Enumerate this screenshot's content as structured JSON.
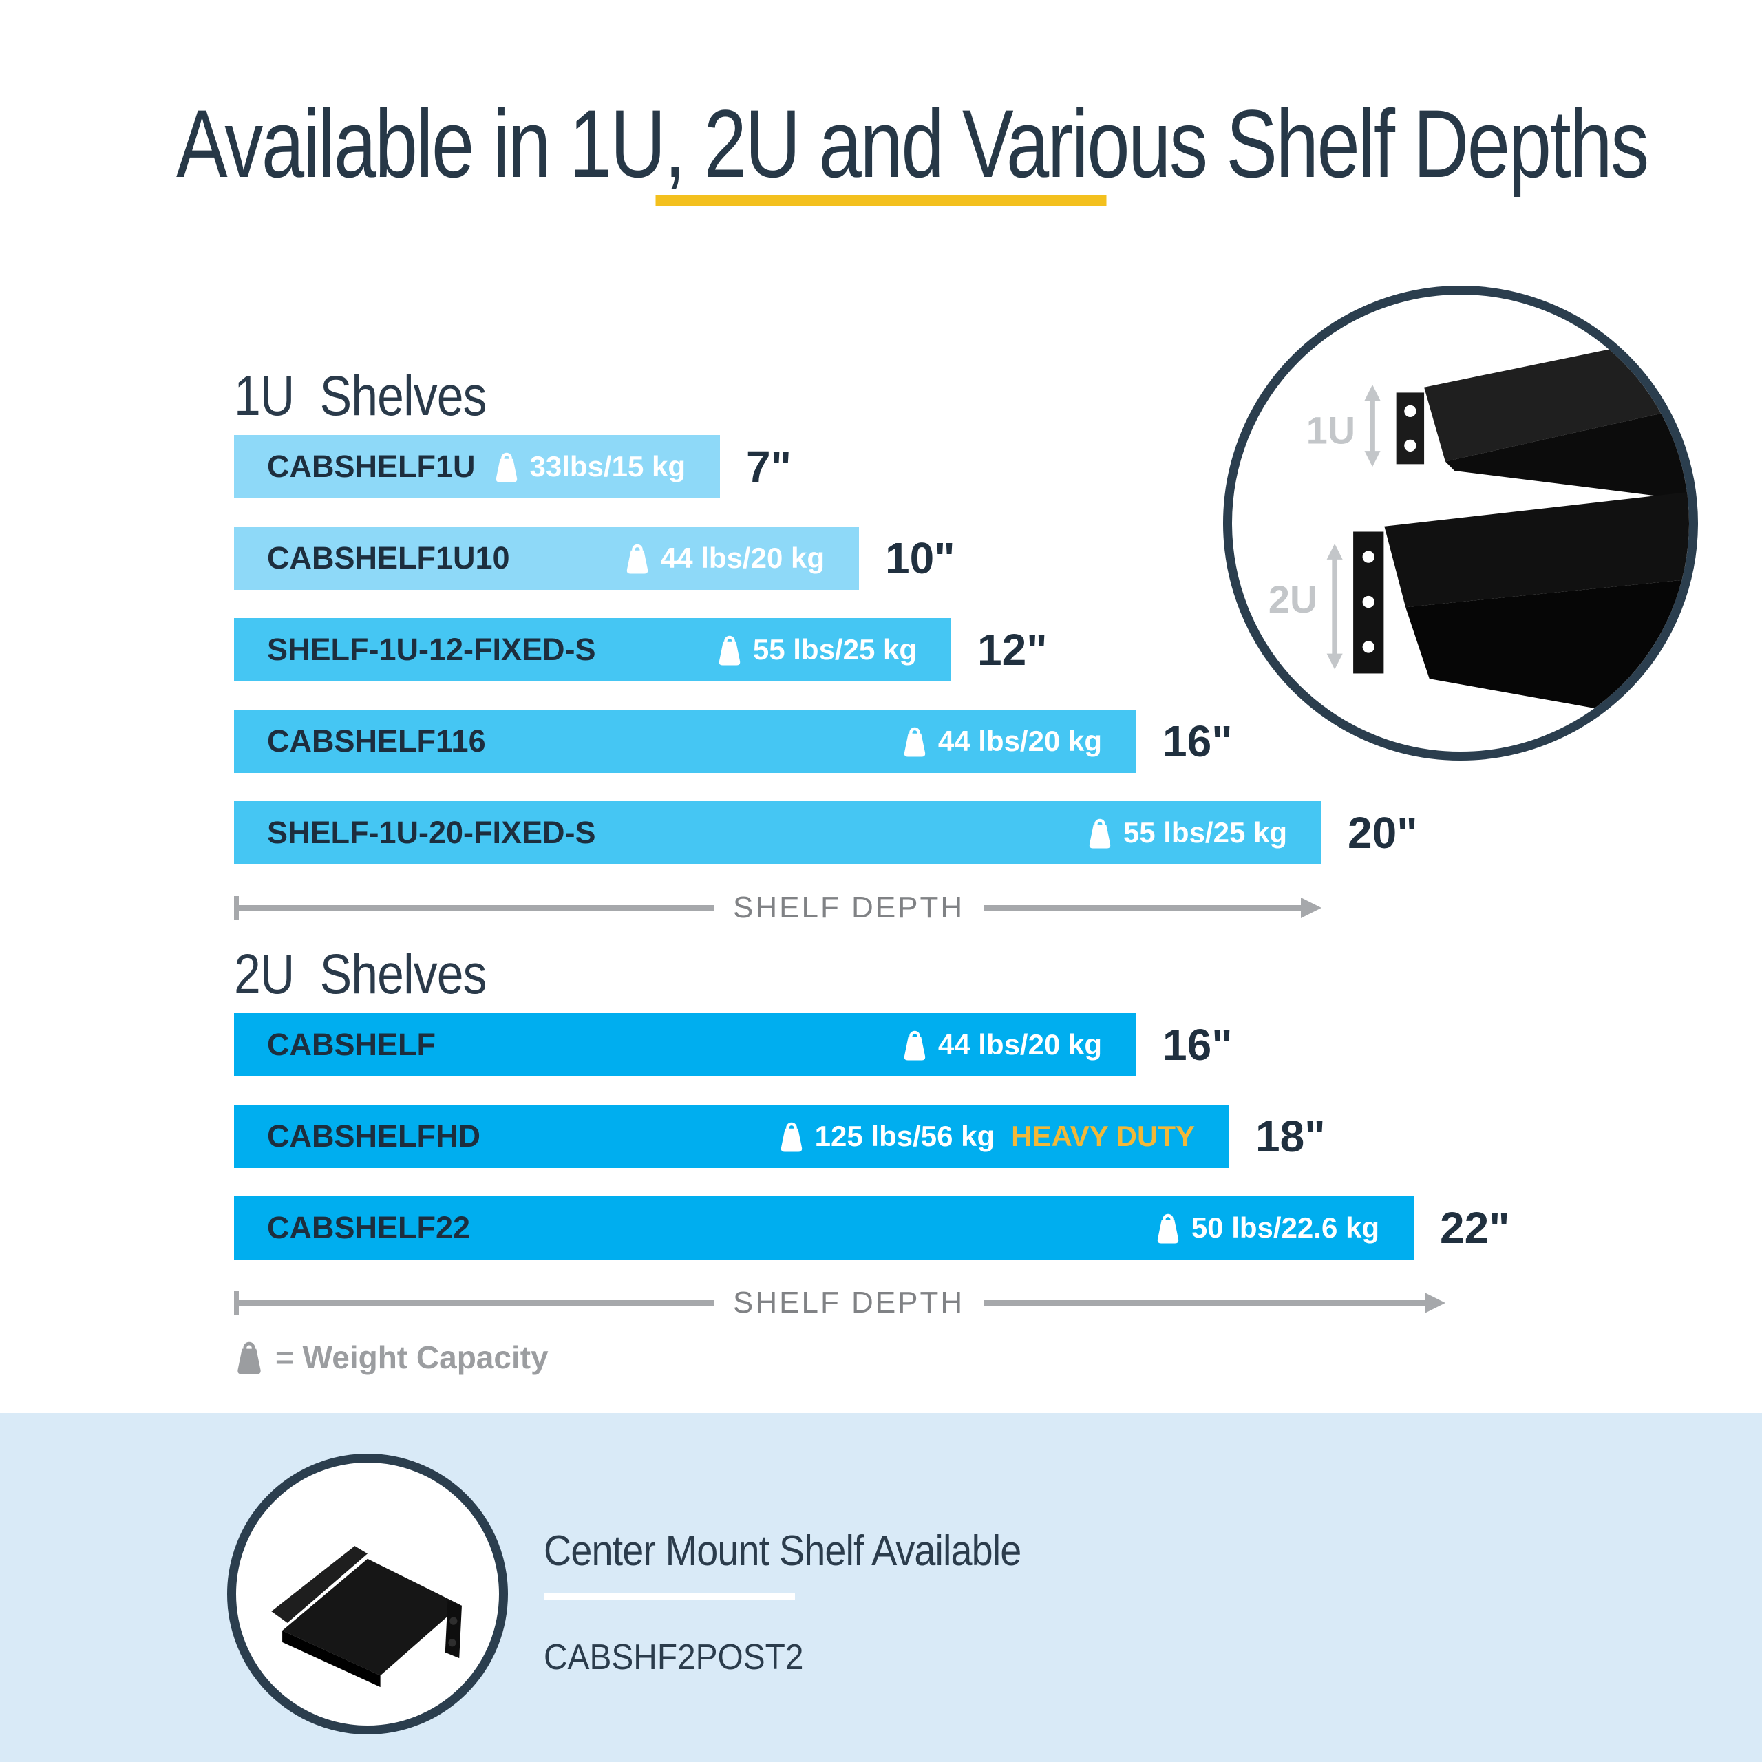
{
  "title": "Available in 1U, 2U and Various Shelf Depths",
  "colors": {
    "navy": "#273847",
    "bar_text_navy": "#1d2e3e",
    "light_blue_bar": "#8ed9f8",
    "medium_blue_bar": "#45c6f3",
    "bright_cyan_bar": "#00aeef",
    "underline_yellow": "#f3c01e",
    "heavy_duty_gold": "#f2b838",
    "axis_gray": "#a6a8ab",
    "legend_gray": "#9b9da0",
    "footer_band_blue": "#d9eaf7"
  },
  "sections": [
    {
      "heading": "1U Shelves",
      "axis_label": "SHELF DEPTH",
      "bars": [
        {
          "model": "CABSHELF1U",
          "capacity": "33lbs/15 kg",
          "depth_label": "7\"",
          "depth_in": 7,
          "color": "#8ed9f8",
          "badge": ""
        },
        {
          "model": "CABSHELF1U10",
          "capacity": "44 lbs/20 kg",
          "depth_label": "10\"",
          "depth_in": 10,
          "color": "#8ed9f8",
          "badge": ""
        },
        {
          "model": "SHELF-1U-12-FIXED-S",
          "capacity": "55 lbs/25 kg",
          "depth_label": "12\"",
          "depth_in": 12,
          "color": "#45c6f3",
          "badge": ""
        },
        {
          "model": "CABSHELF116",
          "capacity": "44 lbs/20 kg",
          "depth_label": "16\"",
          "depth_in": 16,
          "color": "#45c6f3",
          "badge": ""
        },
        {
          "model": "SHELF-1U-20-FIXED-S",
          "capacity": "55 lbs/25 kg",
          "depth_label": "20\"",
          "depth_in": 20,
          "color": "#45c6f3",
          "badge": ""
        }
      ]
    },
    {
      "heading": "2U Shelves",
      "axis_label": "SHELF DEPTH",
      "bars": [
        {
          "model": "CABSHELF",
          "capacity": "44 lbs/20 kg",
          "depth_label": "16\"",
          "depth_in": 16,
          "color": "#00aeef",
          "badge": ""
        },
        {
          "model": "CABSHELFHD",
          "capacity": "125 lbs/56 kg",
          "depth_label": "18\"",
          "depth_in": 18,
          "color": "#00aeef",
          "badge": "HEAVY DUTY"
        },
        {
          "model": "CABSHELF22",
          "capacity": "50 lbs/22.6 kg",
          "depth_label": "22\"",
          "depth_in": 22,
          "color": "#00aeef",
          "badge": ""
        }
      ]
    }
  ],
  "legend": {
    "text": "= Weight Capacity"
  },
  "inset": {
    "labels": [
      "1U",
      "2U"
    ]
  },
  "footer": {
    "title": "Center Mount Shelf Available",
    "model": "CABSHF2POST2"
  },
  "chart_data": [
    {
      "type": "bar",
      "title": "1U Shelves",
      "orientation": "horizontal",
      "categories": [
        "CABSHELF1U",
        "CABSHELF1U10",
        "SHELF-1U-12-FIXED-S",
        "CABSHELF116",
        "SHELF-1U-20-FIXED-S"
      ],
      "values": [
        7,
        10,
        12,
        16,
        20
      ],
      "value_unit": "inches",
      "value_labels": [
        "7\"",
        "10\"",
        "12\"",
        "16\"",
        "20\""
      ],
      "weight_capacities": [
        "33lbs/15 kg",
        "44 lbs/20 kg",
        "55 lbs/25 kg",
        "44 lbs/20 kg",
        "55 lbs/25 kg"
      ],
      "badges": [
        "",
        "",
        "",
        "",
        ""
      ],
      "xlabel": "SHELF DEPTH",
      "xlim": [
        0,
        22
      ],
      "grid": false,
      "legend_position": "none"
    },
    {
      "type": "bar",
      "title": "2U Shelves",
      "orientation": "horizontal",
      "categories": [
        "CABSHELF",
        "CABSHELFHD",
        "CABSHELF22"
      ],
      "values": [
        16,
        18,
        22
      ],
      "value_unit": "inches",
      "value_labels": [
        "16\"",
        "18\"",
        "22\""
      ],
      "weight_capacities": [
        "44 lbs/20 kg",
        "125 lbs/56 kg",
        "50 lbs/22.6 kg"
      ],
      "badges": [
        "",
        "HEAVY DUTY",
        ""
      ],
      "xlabel": "SHELF DEPTH",
      "xlim": [
        0,
        22
      ],
      "grid": false,
      "legend_position": "none"
    }
  ]
}
